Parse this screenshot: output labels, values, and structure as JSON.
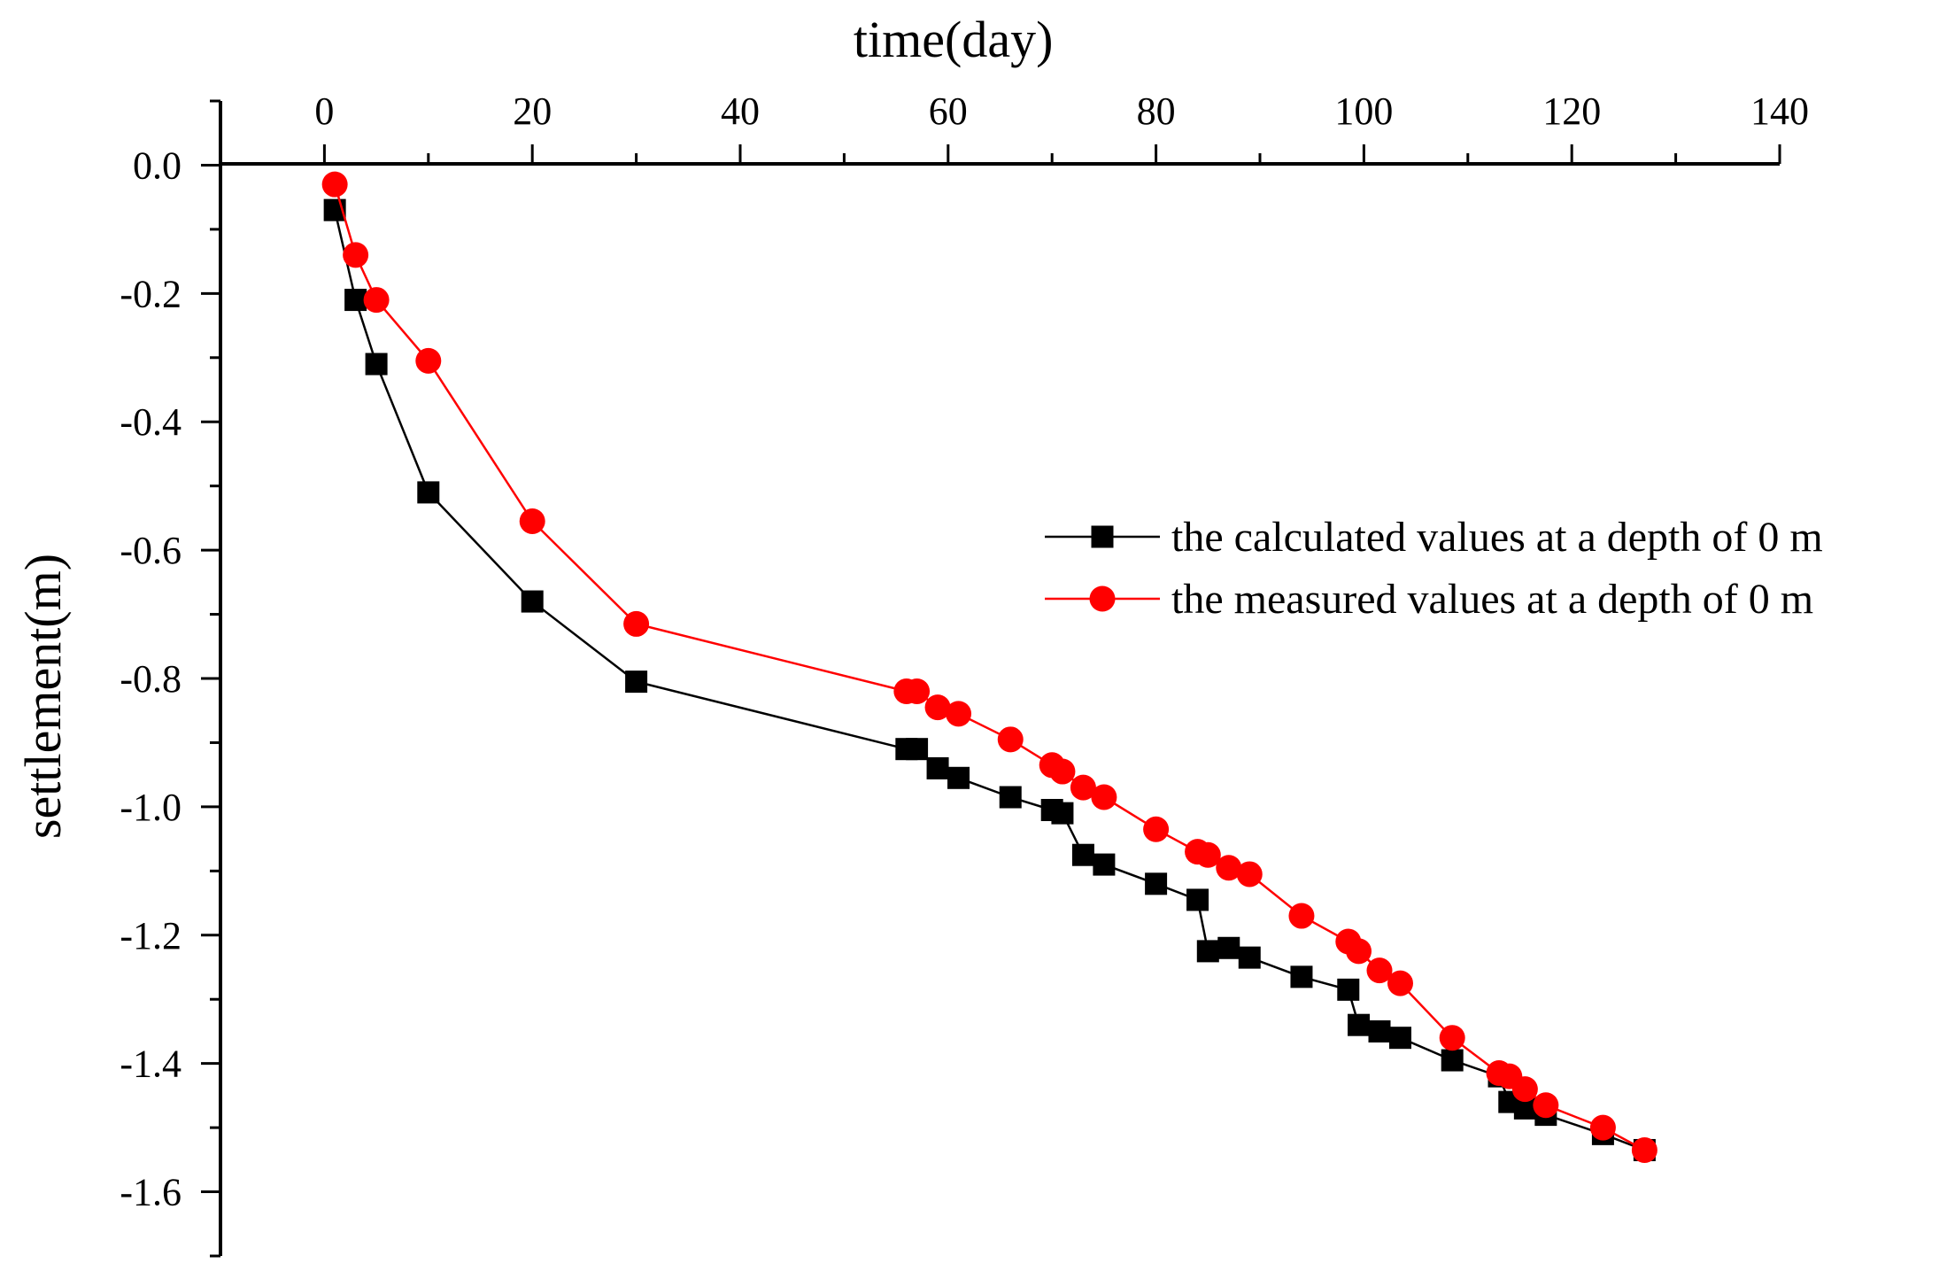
{
  "chart_data": {
    "type": "line",
    "title": "",
    "xlabel": "time(day)",
    "ylabel": "settlement(m)",
    "xlim": [
      -10,
      140
    ],
    "ylim": [
      -1.7,
      0.1
    ],
    "x_ticks": [
      0,
      20,
      40,
      60,
      80,
      100,
      120,
      140
    ],
    "x_tick_labels": [
      "0",
      "20",
      "40",
      "60",
      "80",
      "100",
      "120",
      "140"
    ],
    "y_ticks": [
      0.0,
      -0.2,
      -0.4,
      -0.6,
      -0.8,
      -1.0,
      -1.2,
      -1.4,
      -1.6
    ],
    "y_tick_labels": [
      "0.0",
      "-0.2",
      "-0.4",
      "-0.6",
      "-0.8",
      "-1.0",
      "-1.2",
      "-1.4",
      "-1.6"
    ],
    "x_axis_position": "top",
    "grid": false,
    "legend_position": "right",
    "series": [
      {
        "name": "the calculated values at a depth of 0 m",
        "marker": "square",
        "color": "#000000",
        "x": [
          1,
          3,
          5,
          10,
          20,
          30,
          56,
          57,
          59,
          61,
          66,
          70,
          71,
          73,
          75,
          80,
          84,
          85,
          87,
          89,
          94,
          98.5,
          99.5,
          101.5,
          103.5,
          108.5,
          113,
          114,
          115.5,
          117.5,
          123,
          127
        ],
        "y": [
          -0.07,
          -0.21,
          -0.31,
          -0.51,
          -0.68,
          -0.805,
          -0.91,
          -0.91,
          -0.94,
          -0.955,
          -0.985,
          -1.005,
          -1.01,
          -1.075,
          -1.09,
          -1.12,
          -1.145,
          -1.225,
          -1.22,
          -1.235,
          -1.265,
          -1.285,
          -1.34,
          -1.35,
          -1.36,
          -1.395,
          -1.42,
          -1.46,
          -1.47,
          -1.48,
          -1.51,
          -1.535
        ]
      },
      {
        "name": "the measured values at a depth of 0 m",
        "marker": "circle",
        "color": "#ff0000",
        "x": [
          1,
          3,
          5,
          10,
          20,
          30,
          56,
          57,
          59,
          61,
          66,
          70,
          71,
          73,
          75,
          80,
          84,
          85,
          87,
          89,
          94,
          98.5,
          99.5,
          101.5,
          103.5,
          108.5,
          113,
          114,
          115.5,
          117.5,
          123,
          127
        ],
        "y": [
          -0.03,
          -0.14,
          -0.21,
          -0.305,
          -0.555,
          -0.715,
          -0.82,
          -0.82,
          -0.845,
          -0.855,
          -0.895,
          -0.935,
          -0.945,
          -0.97,
          -0.985,
          -1.035,
          -1.07,
          -1.075,
          -1.095,
          -1.105,
          -1.17,
          -1.21,
          -1.225,
          -1.255,
          -1.275,
          -1.36,
          -1.415,
          -1.42,
          -1.44,
          -1.465,
          -1.5,
          -1.535
        ]
      }
    ]
  }
}
